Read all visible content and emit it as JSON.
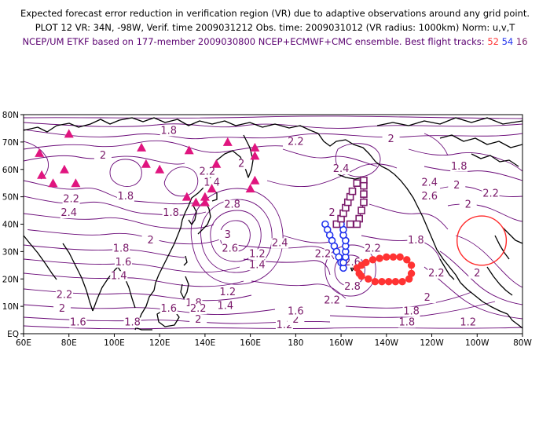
{
  "header": {
    "line1": "Expected forecast error reduction in verification region (VR) due to adaptive observations around any grid point.",
    "line2": "PLOT 12 VR: 34N, -98W, Verif. time 2009031212 Obs. time: 2009031012 (VR radius: 1000km) Norm: u,v,T",
    "line3_prefix": "NCEP/UM ETKF based on 177-member 2009030800 NCEP+ECMWF+CMC ensemble. Best flight tracks:",
    "track_red": "52",
    "track_blue": "54",
    "track_purple": "16"
  },
  "colors": {
    "contour": "#6a0a78",
    "coast": "#000000",
    "triangle": "#e0157f",
    "track_red": "#ff3333",
    "track_blue": "#2233ee",
    "track_purple": "#7a1a6a",
    "vr_circle": "#ff2a2a"
  },
  "axes": {
    "x_ticks": [
      "60E",
      "80E",
      "100E",
      "120E",
      "140E",
      "160E",
      "180",
      "160W",
      "140W",
      "120W",
      "100W",
      "80W"
    ],
    "y_ticks": [
      "EQ",
      "10N",
      "20N",
      "30N",
      "40N",
      "50N",
      "60N",
      "70N",
      "80N"
    ]
  },
  "verification_region": {
    "lat": 34,
    "lon": -98,
    "radius_km": 1000
  },
  "triangles": [
    {
      "lon": 67,
      "lat": 66
    },
    {
      "lon": 68,
      "lat": 58
    },
    {
      "lon": 73,
      "lat": 55
    },
    {
      "lon": 78,
      "lat": 60
    },
    {
      "lon": 80,
      "lat": 73
    },
    {
      "lon": 83,
      "lat": 55
    },
    {
      "lon": 112,
      "lat": 68
    },
    {
      "lon": 114,
      "lat": 62
    },
    {
      "lon": 120,
      "lat": 60
    },
    {
      "lon": 133,
      "lat": 67
    },
    {
      "lon": 145,
      "lat": 62
    },
    {
      "lon": 150,
      "lat": 70
    },
    {
      "lon": 162,
      "lat": 68
    },
    {
      "lon": 162,
      "lat": 65
    },
    {
      "lon": 162,
      "lat": 56
    },
    {
      "lon": 160,
      "lat": 53
    },
    {
      "lon": 143,
      "lat": 53
    },
    {
      "lon": 140,
      "lat": 50
    },
    {
      "lon": 136,
      "lat": 48
    },
    {
      "lon": 132,
      "lat": 50
    },
    {
      "lon": 140,
      "lat": 48
    }
  ],
  "track_blue_points": [
    [
      -167,
      40
    ],
    [
      -166,
      38
    ],
    [
      -165,
      36
    ],
    [
      -164,
      34
    ],
    [
      -163,
      32
    ],
    [
      -162,
      30
    ],
    [
      -161,
      28
    ],
    [
      -160,
      26
    ],
    [
      -159,
      24
    ],
    [
      -159,
      26
    ],
    [
      -158,
      28
    ],
    [
      -158,
      30
    ],
    [
      -158,
      32
    ],
    [
      -158,
      34
    ],
    [
      -159,
      36
    ],
    [
      -159,
      38
    ],
    [
      -160,
      40
    ]
  ],
  "track_purple_points": [
    [
      -162,
      40
    ],
    [
      -160,
      42
    ],
    [
      -159,
      44
    ],
    [
      -158,
      46
    ],
    [
      -157,
      48
    ],
    [
      -156,
      50
    ],
    [
      -155,
      52
    ],
    [
      -153,
      55
    ],
    [
      -150,
      56
    ],
    [
      -150,
      54
    ],
    [
      -150,
      51
    ],
    [
      -150,
      48
    ],
    [
      -151,
      45
    ],
    [
      -152,
      42
    ],
    [
      -153,
      40
    ],
    [
      -156,
      40
    ]
  ],
  "track_red_points": [
    [
      -153,
      24
    ],
    [
      -151,
      25
    ],
    [
      -149,
      26
    ],
    [
      -146,
      27
    ],
    [
      -143,
      27.5
    ],
    [
      -140,
      28
    ],
    [
      -137,
      28
    ],
    [
      -134,
      28
    ],
    [
      -131,
      27
    ],
    [
      -129,
      25
    ],
    [
      -129,
      22
    ],
    [
      -130,
      20
    ],
    [
      -133,
      19
    ],
    [
      -136,
      19
    ],
    [
      -139,
      19
    ],
    [
      -142,
      19
    ],
    [
      -145,
      19
    ],
    [
      -148,
      20
    ],
    [
      -151,
      21
    ],
    [
      -152,
      22
    ]
  ],
  "contour_labels": [
    {
      "t": "1.8",
      "lon": 124,
      "lat": 73
    },
    {
      "t": "2",
      "lon": 95,
      "lat": 64
    },
    {
      "t": "2.2",
      "lon": 180,
      "lat": 69
    },
    {
      "t": "2",
      "lon": 156,
      "lat": 61
    },
    {
      "t": "2",
      "lon": -138,
      "lat": 70
    },
    {
      "t": "2.4",
      "lon": -160,
      "lat": 59
    },
    {
      "t": "2.2",
      "lon": 141,
      "lat": 58
    },
    {
      "t": "1.4",
      "lon": 143,
      "lat": 54
    },
    {
      "t": "2.2",
      "lon": 81,
      "lat": 48
    },
    {
      "t": "2.4",
      "lon": 80,
      "lat": 43
    },
    {
      "t": "1.8",
      "lon": 105,
      "lat": 49
    },
    {
      "t": "1.8",
      "lon": 125,
      "lat": 43
    },
    {
      "t": "2.8",
      "lon": 152,
      "lat": 46
    },
    {
      "t": "3",
      "lon": 150,
      "lat": 35
    },
    {
      "t": "2.6",
      "lon": 151,
      "lat": 30
    },
    {
      "t": "1.2",
      "lon": 163,
      "lat": 28
    },
    {
      "t": "1.4",
      "lon": 163,
      "lat": 24
    },
    {
      "t": "2.4",
      "lon": 173,
      "lat": 32
    },
    {
      "t": "2.2",
      "lon": -168,
      "lat": 28
    },
    {
      "t": "2",
      "lon": -164,
      "lat": 43
    },
    {
      "t": "2.6",
      "lon": -155,
      "lat": 25
    },
    {
      "t": "2.8",
      "lon": -155,
      "lat": 16
    },
    {
      "t": "2.2",
      "lon": -146,
      "lat": 30
    },
    {
      "t": "1.8",
      "lon": -127,
      "lat": 33
    },
    {
      "t": "2.2",
      "lon": -118,
      "lat": 21
    },
    {
      "t": "1.8",
      "lon": -108,
      "lat": 60
    },
    {
      "t": "2.4",
      "lon": -121,
      "lat": 54
    },
    {
      "t": "2",
      "lon": -109,
      "lat": 53
    },
    {
      "t": "2.6",
      "lon": -121,
      "lat": 49
    },
    {
      "t": "2",
      "lon": -104,
      "lat": 46
    },
    {
      "t": "2.2",
      "lon": -94,
      "lat": 50
    },
    {
      "t": "2",
      "lon": -100,
      "lat": 21
    },
    {
      "t": "2",
      "lon": 58,
      "lat": 38
    },
    {
      "t": "1.8",
      "lon": 103,
      "lat": 30
    },
    {
      "t": "2",
      "lon": 116,
      "lat": 33
    },
    {
      "t": "1.6",
      "lon": 104,
      "lat": 25
    },
    {
      "t": "1.4",
      "lon": 102,
      "lat": 20
    },
    {
      "t": "2.2",
      "lon": 78,
      "lat": 13
    },
    {
      "t": "2",
      "lon": 77,
      "lat": 8
    },
    {
      "t": "1.6",
      "lon": 124,
      "lat": 8
    },
    {
      "t": "1.8",
      "lon": 135,
      "lat": 10
    },
    {
      "t": "1.4",
      "lon": 149,
      "lat": 9
    },
    {
      "t": "1.2",
      "lon": 150,
      "lat": 14
    },
    {
      "t": "2",
      "lon": 137,
      "lat": 4
    },
    {
      "t": "1.8",
      "lon": 108,
      "lat": 3
    },
    {
      "t": "1.6",
      "lon": 84,
      "lat": 3
    },
    {
      "t": "2.2",
      "lon": -164,
      "lat": 11
    },
    {
      "t": "1.2",
      "lon": 175,
      "lat": 2
    },
    {
      "t": "2",
      "lon": 180,
      "lat": 4
    },
    {
      "t": "1.6",
      "lon": 180,
      "lat": 7
    },
    {
      "t": "2",
      "lon": -122,
      "lat": 12
    },
    {
      "t": "1.8",
      "lon": -129,
      "lat": 7
    },
    {
      "t": "1.8",
      "lon": -131,
      "lat": 3
    },
    {
      "t": "1.2",
      "lon": -104,
      "lat": 3
    },
    {
      "t": "2.2",
      "lon": 137,
      "lat": 8
    }
  ]
}
